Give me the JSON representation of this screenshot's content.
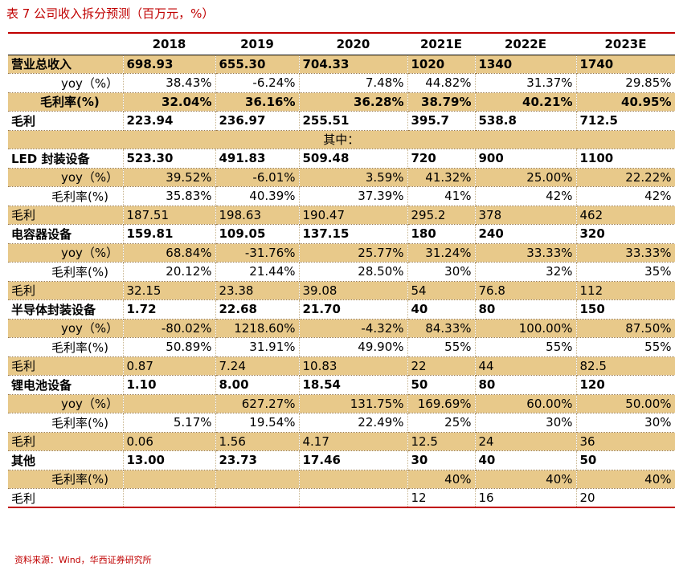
{
  "caption": "表 7 公司收入拆分预测（百万元，%）",
  "source": "资料来源：Wind，华西证券研究所",
  "columns": [
    "",
    "2018",
    "2019",
    "2020",
    "2021E",
    "2022E",
    "2023E"
  ],
  "rows": [
    {
      "cells": [
        "营业总收入",
        "698.93",
        "655.30",
        "704.33",
        "1020",
        "1340",
        "1740"
      ]
    },
    {
      "cells": [
        "yoy（%）",
        "38.43%",
        "-6.24%",
        "7.48%",
        "44.82%",
        "31.37%",
        "29.85%"
      ]
    },
    {
      "cells": [
        "毛利率(%)",
        "32.04%",
        "36.16%",
        "36.28%",
        "38.79%",
        "40.21%",
        "40.95%"
      ]
    },
    {
      "cells": [
        "毛利",
        "223.94",
        "236.97",
        "255.51",
        "395.7",
        "538.8",
        "712.5"
      ]
    },
    {
      "cells": [
        "其中："
      ]
    },
    {
      "cells": [
        "LED 封装设备",
        "523.30",
        "491.83",
        "509.48",
        "720",
        "900",
        "1100"
      ]
    },
    {
      "cells": [
        "yoy（%）",
        "39.52%",
        "-6.01%",
        "3.59%",
        "41.32%",
        "25.00%",
        "22.22%"
      ]
    },
    {
      "cells": [
        "毛利率(%)",
        "35.83%",
        "40.39%",
        "37.39%",
        "41%",
        "42%",
        "42%"
      ]
    },
    {
      "cells": [
        "毛利",
        "187.51",
        "198.63",
        "190.47",
        "295.2",
        "378",
        "462"
      ]
    },
    {
      "cells": [
        "电容器设备",
        "159.81",
        "109.05",
        "137.15",
        "180",
        "240",
        "320"
      ]
    },
    {
      "cells": [
        "yoy（%）",
        "68.84%",
        "-31.76%",
        "25.77%",
        "31.24%",
        "33.33%",
        "33.33%"
      ]
    },
    {
      "cells": [
        "毛利率(%)",
        "20.12%",
        "21.44%",
        "28.50%",
        "30%",
        "32%",
        "35%"
      ]
    },
    {
      "cells": [
        "毛利",
        "32.15",
        "23.38",
        "39.08",
        "54",
        "76.8",
        "112"
      ]
    },
    {
      "cells": [
        "半导体封装设备",
        "1.72",
        "22.68",
        "21.70",
        "40",
        "80",
        "150"
      ]
    },
    {
      "cells": [
        "yoy（%）",
        "-80.02%",
        "1218.60%",
        "-4.32%",
        "84.33%",
        "100.00%",
        "87.50%"
      ]
    },
    {
      "cells": [
        "毛利率(%)",
        "50.89%",
        "31.91%",
        "49.90%",
        "55%",
        "55%",
        "55%"
      ]
    },
    {
      "cells": [
        "毛利",
        "0.87",
        "7.24",
        "10.83",
        "22",
        "44",
        "82.5"
      ]
    },
    {
      "cells": [
        "锂电池设备",
        "1.10",
        "8.00",
        "18.54",
        "50",
        "80",
        "120"
      ]
    },
    {
      "cells": [
        "yoy（%）",
        "",
        "627.27%",
        "131.75%",
        "169.69%",
        "60.00%",
        "50.00%"
      ]
    },
    {
      "cells": [
        "毛利率(%)",
        "5.17%",
        "19.54%",
        "22.49%",
        "25%",
        "30%",
        "30%"
      ]
    },
    {
      "cells": [
        "毛利",
        "0.06",
        "1.56",
        "4.17",
        "12.5",
        "24",
        "36"
      ]
    },
    {
      "cells": [
        "其他",
        "13.00",
        "23.73",
        "17.46",
        "30",
        "40",
        "50"
      ]
    },
    {
      "cells": [
        "毛利率(%)",
        "",
        "",
        "",
        "40%",
        "40%",
        "40%"
      ]
    },
    {
      "cells": [
        "毛利",
        "",
        "",
        "",
        "12",
        "16",
        "20"
      ]
    }
  ]
}
